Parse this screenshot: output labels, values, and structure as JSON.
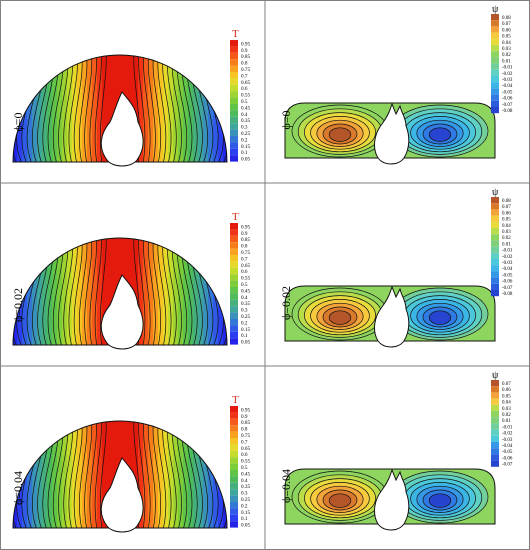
{
  "figure": {
    "rows": [
      {
        "phi_label": "ϕ=0",
        "temperature": {
          "legend_title": "T",
          "ticks": [
            "0.95",
            "0.9",
            "0.85",
            "0.8",
            "0.75",
            "0.7",
            "0.65",
            "0.6",
            "0.55",
            "0.5",
            "0.45",
            "0.4",
            "0.35",
            "0.3",
            "0.25",
            "0.2",
            "0.15",
            "0.1",
            "0.05"
          ]
        },
        "streamfunction": {
          "legend_title": "ψ",
          "ticks": [
            "0.08",
            "0.07",
            "0.06",
            "0.05",
            "0.04",
            "0.03",
            "0.02",
            "0.01",
            "-0.01",
            "-0.02",
            "-0.03",
            "-0.04",
            "-0.05",
            "-0.06",
            "-0.07",
            "-0.08"
          ]
        }
      },
      {
        "phi_label": "ϕ=0.02",
        "temperature": {
          "legend_title": "T",
          "ticks": [
            "0.95",
            "0.9",
            "0.85",
            "0.8",
            "0.75",
            "0.7",
            "0.65",
            "0.6",
            "0.55",
            "0.5",
            "0.45",
            "0.4",
            "0.35",
            "0.3",
            "0.25",
            "0.2",
            "0.15",
            "0.1",
            "0.05"
          ]
        },
        "streamfunction": {
          "legend_title": "ψ",
          "ticks": [
            "0.08",
            "0.07",
            "0.06",
            "0.05",
            "0.04",
            "0.03",
            "0.02",
            "0.01",
            "-0.01",
            "-0.02",
            "-0.03",
            "-0.04",
            "-0.05",
            "-0.06",
            "-0.07",
            "-0.08"
          ]
        }
      },
      {
        "phi_label": "ϕ=0.04",
        "temperature": {
          "legend_title": "T",
          "ticks": [
            "0.95",
            "0.9",
            "0.85",
            "0.8",
            "0.75",
            "0.7",
            "0.65",
            "0.6",
            "0.55",
            "0.5",
            "0.45",
            "0.4",
            "0.35",
            "0.3",
            "0.25",
            "0.2",
            "0.15",
            "0.1",
            "0.05"
          ]
        },
        "streamfunction": {
          "legend_title": "ψ",
          "ticks": [
            "0.07",
            "0.06",
            "0.05",
            "0.04",
            "0.03",
            "0.02",
            "0.01",
            "-0.01",
            "-0.02",
            "-0.03",
            "-0.04",
            "-0.05",
            "-0.06",
            "-0.07"
          ]
        }
      }
    ]
  },
  "colors": {
    "temperature_scale": [
      "#e31a0c",
      "#ef3516",
      "#f45a1a",
      "#f77d1c",
      "#f9a21f",
      "#f7c523",
      "#e6d92a",
      "#c4dc2c",
      "#9ed431",
      "#7dcc3a",
      "#5fc448",
      "#4dba5c",
      "#46b07c",
      "#3fa69c",
      "#3a92bb",
      "#3478d6",
      "#2f5be6",
      "#2a3ff0",
      "#2424e8"
    ],
    "stream_scale": [
      "#b4562a",
      "#d9792b",
      "#f2a33a",
      "#f6c93e",
      "#e7dc3c",
      "#b8dc4a",
      "#8ed560",
      "#7fd078",
      "#72cf9c",
      "#5fd0c4",
      "#4cc8dc",
      "#3bb4e6",
      "#3598e6",
      "#2f7ae3",
      "#2b5bd9",
      "#2744d1"
    ],
    "border": "#7f7f7f",
    "contour_line": "#111111"
  }
}
